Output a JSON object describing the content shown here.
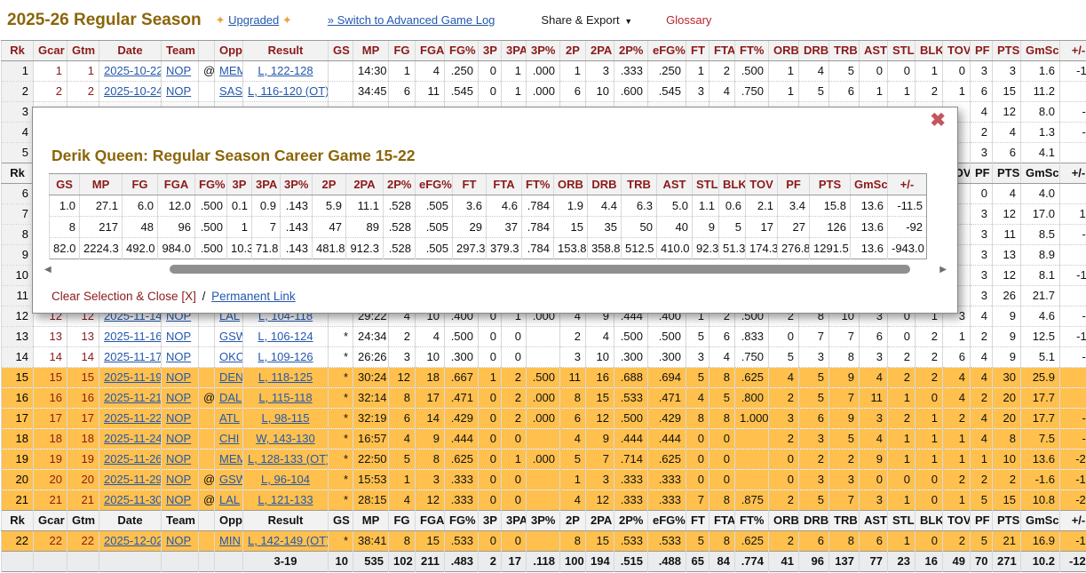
{
  "header": {
    "title": "2025-26 Regular Season",
    "upgraded_label": "Upgraded",
    "switch_label": "» Switch to Advanced Game Log",
    "share_label": "Share & Export",
    "glossary_label": "Glossary"
  },
  "icons": {
    "sparkle": "✦",
    "caret": "▼",
    "close": "✖",
    "scroll_left": "◀",
    "scroll_right": "▶"
  },
  "colors": {
    "highlight_orange": "#ffc04d",
    "header_maroon": "#8b1a19",
    "link_blue": "#2458ad",
    "title_brown": "#8b6508",
    "glossary_red": "#b8242a",
    "close_rose": "#c4565e"
  },
  "main_table": {
    "columns": [
      "Rk",
      "Gcar",
      "Gtm",
      "Date",
      "Team",
      "",
      "Opp",
      "Result",
      "GS",
      "MP",
      "FG",
      "FGA",
      "FG%",
      "3P",
      "3PA",
      "3P%",
      "2P",
      "2PA",
      "2P%",
      "eFG%",
      "FT",
      "FTA",
      "FT%",
      "ORB",
      "DRB",
      "TRB",
      "AST",
      "STL",
      "BLK",
      "TOV",
      "PF",
      "PTS",
      "GmSc",
      "+/-"
    ],
    "rows": [
      {
        "type": "header",
        "variant": "top"
      },
      {
        "type": "data",
        "hl": false,
        "cells": [
          "1",
          "1",
          "1",
          "2025-10-22",
          "NOP",
          "@",
          "MEM",
          "L, 122-128",
          "",
          "14:30",
          "1",
          "4",
          ".250",
          "0",
          "1",
          ".000",
          "1",
          "3",
          ".333",
          ".250",
          "1",
          "2",
          ".500",
          "1",
          "4",
          "5",
          "0",
          "0",
          "1",
          "0",
          "3",
          "3",
          "1.6",
          "-11"
        ]
      },
      {
        "type": "data",
        "hl": false,
        "cells": [
          "2",
          "2",
          "2",
          "2025-10-24",
          "NOP",
          "",
          "SAS",
          "L, 116-120 (OT)",
          "",
          "34:45",
          "6",
          "11",
          ".545",
          "0",
          "1",
          ".000",
          "6",
          "10",
          ".600",
          ".545",
          "3",
          "4",
          ".750",
          "1",
          "5",
          "6",
          "1",
          "1",
          "2",
          "1",
          "6",
          "15",
          "11.2",
          "5"
        ]
      },
      {
        "type": "data",
        "hl": false,
        "cells": [
          "3",
          "",
          "",
          "",
          "",
          "",
          "",
          "",
          "",
          "",
          "",
          "",
          "",
          "",
          "",
          "",
          "",
          "",
          "",
          "",
          "",
          "",
          "",
          "",
          "",
          "",
          "",
          "",
          "",
          "",
          "4",
          "12",
          "8.0",
          "-7"
        ]
      },
      {
        "type": "data",
        "hl": false,
        "cells": [
          "4",
          "",
          "",
          "",
          "",
          "",
          "",
          "",
          "",
          "",
          "",
          "",
          "",
          "",
          "",
          "",
          "",
          "",
          "",
          "",
          "",
          "",
          "",
          "",
          "",
          "",
          "",
          "",
          "",
          "",
          "2",
          "4",
          "1.3",
          "-5"
        ]
      },
      {
        "type": "data",
        "hl": false,
        "cells": [
          "5",
          "",
          "",
          "",
          "",
          "",
          "",
          "",
          "",
          "",
          "",
          "",
          "",
          "",
          "",
          "",
          "",
          "",
          "",
          "",
          "",
          "",
          "",
          "",
          "",
          "",
          "",
          "",
          "",
          "",
          "3",
          "6",
          "4.1",
          "2"
        ]
      },
      {
        "type": "header",
        "variant": "mid"
      },
      {
        "type": "data",
        "hl": false,
        "cells": [
          "6",
          "",
          "",
          "",
          "",
          "",
          "",
          "",
          "",
          "",
          "",
          "",
          "",
          "",
          "",
          "",
          "",
          "",
          "",
          "",
          "",
          "",
          "",
          "",
          "",
          "",
          "",
          "",
          "",
          "",
          "0",
          "4",
          "4.0",
          "1"
        ]
      },
      {
        "type": "data",
        "hl": false,
        "cells": [
          "7",
          "",
          "",
          "",
          "",
          "",
          "",
          "",
          "",
          "",
          "",
          "",
          "",
          "",
          "",
          "",
          "",
          "",
          "",
          "",
          "",
          "",
          "",
          "",
          "",
          "",
          "",
          "",
          "",
          "",
          "3",
          "12",
          "17.0",
          "13"
        ]
      },
      {
        "type": "data",
        "hl": false,
        "cells": [
          "8",
          "",
          "",
          "",
          "",
          "",
          "",
          "",
          "",
          "",
          "",
          "",
          "",
          "",
          "",
          "",
          "",
          "",
          "",
          "",
          "",
          "",
          "",
          "",
          "",
          "",
          "",
          "",
          "",
          "",
          "3",
          "11",
          "8.5",
          "-3"
        ]
      },
      {
        "type": "data",
        "hl": false,
        "cells": [
          "9",
          "",
          "",
          "",
          "",
          "",
          "",
          "",
          "",
          "",
          "",
          "",
          "",
          "",
          "",
          "",
          "",
          "",
          "",
          "",
          "",
          "",
          "",
          "",
          "",
          "",
          "",
          "",
          "",
          "",
          "3",
          "13",
          "8.9",
          "0"
        ]
      },
      {
        "type": "data",
        "hl": false,
        "cells": [
          "10",
          "",
          "",
          "",
          "",
          "",
          "",
          "",
          "",
          "",
          "",
          "",
          "",
          "",
          "",
          "",
          "",
          "",
          "",
          "",
          "",
          "",
          "",
          "",
          "",
          "",
          "",
          "",
          "",
          "",
          "3",
          "12",
          "8.1",
          "-11"
        ]
      },
      {
        "type": "data",
        "hl": false,
        "cells": [
          "11",
          "",
          "",
          "",
          "",
          "",
          "",
          "",
          "",
          "",
          "",
          "",
          "",
          "",
          "",
          "",
          "",
          "",
          "",
          "",
          "",
          "",
          "",
          "",
          "",
          "",
          "",
          "",
          "",
          "",
          "3",
          "26",
          "21.7",
          "0"
        ]
      },
      {
        "type": "data",
        "hl": false,
        "cells": [
          "12",
          "12",
          "12",
          "2025-11-14",
          "NOP",
          "",
          "LAL",
          "L, 104-118",
          "",
          "29:22",
          "4",
          "10",
          ".400",
          "0",
          "1",
          ".000",
          "4",
          "9",
          ".444",
          ".400",
          "1",
          "2",
          ".500",
          "2",
          "8",
          "10",
          "3",
          "0",
          "1",
          "3",
          "4",
          "9",
          "4.6",
          "-2"
        ]
      },
      {
        "type": "data",
        "hl": false,
        "cells": [
          "13",
          "13",
          "13",
          "2025-11-16",
          "NOP",
          "",
          "GSW",
          "L, 106-124",
          "*",
          "24:34",
          "2",
          "4",
          ".500",
          "0",
          "0",
          "",
          "2",
          "4",
          ".500",
          ".500",
          "5",
          "6",
          ".833",
          "0",
          "7",
          "7",
          "6",
          "0",
          "2",
          "1",
          "2",
          "9",
          "12.5",
          "-11"
        ]
      },
      {
        "type": "data",
        "hl": false,
        "cells": [
          "14",
          "14",
          "14",
          "2025-11-17",
          "NOP",
          "",
          "OKC",
          "L, 109-126",
          "*",
          "26:26",
          "3",
          "10",
          ".300",
          "0",
          "0",
          "",
          "3",
          "10",
          ".300",
          ".300",
          "3",
          "4",
          ".750",
          "5",
          "3",
          "8",
          "3",
          "2",
          "2",
          "6",
          "4",
          "9",
          "5.1",
          "-7"
        ]
      },
      {
        "type": "data",
        "hl": true,
        "cells": [
          "15",
          "15",
          "15",
          "2025-11-19",
          "NOP",
          "",
          "DEN",
          "L, 118-125",
          "*",
          "30:24",
          "12",
          "18",
          ".667",
          "1",
          "2",
          ".500",
          "11",
          "16",
          ".688",
          ".694",
          "5",
          "8",
          ".625",
          "4",
          "5",
          "9",
          "4",
          "2",
          "2",
          "4",
          "4",
          "30",
          "25.9",
          "0"
        ]
      },
      {
        "type": "data",
        "hl": true,
        "cells": [
          "16",
          "16",
          "16",
          "2025-11-21",
          "NOP",
          "@",
          "DAL",
          "L, 115-118",
          "*",
          "32:14",
          "8",
          "17",
          ".471",
          "0",
          "2",
          ".000",
          "8",
          "15",
          ".533",
          ".471",
          "4",
          "5",
          ".800",
          "2",
          "5",
          "7",
          "11",
          "1",
          "0",
          "4",
          "2",
          "20",
          "17.7",
          "1"
        ]
      },
      {
        "type": "data",
        "hl": true,
        "cells": [
          "17",
          "17",
          "17",
          "2025-11-22",
          "NOP",
          "",
          "ATL",
          "L, 98-115",
          "*",
          "32:19",
          "6",
          "14",
          ".429",
          "0",
          "2",
          ".000",
          "6",
          "12",
          ".500",
          ".429",
          "8",
          "8",
          "1.000",
          "3",
          "6",
          "9",
          "3",
          "2",
          "1",
          "2",
          "4",
          "20",
          "17.7",
          "-8"
        ]
      },
      {
        "type": "data",
        "hl": true,
        "cells": [
          "18",
          "18",
          "18",
          "2025-11-24",
          "NOP",
          "",
          "CHI",
          "W, 143-130",
          "*",
          "16:57",
          "4",
          "9",
          ".444",
          "0",
          "0",
          "",
          "4",
          "9",
          ".444",
          ".444",
          "0",
          "0",
          "",
          "2",
          "3",
          "5",
          "4",
          "1",
          "1",
          "1",
          "4",
          "8",
          "7.5",
          "-5"
        ]
      },
      {
        "type": "data",
        "hl": true,
        "cells": [
          "19",
          "19",
          "19",
          "2025-11-26",
          "NOP",
          "",
          "MEM",
          "L, 128-133 (OT)",
          "*",
          "22:50",
          "5",
          "8",
          ".625",
          "0",
          "1",
          ".000",
          "5",
          "7",
          ".714",
          ".625",
          "0",
          "0",
          "",
          "0",
          "2",
          "2",
          "9",
          "1",
          "1",
          "1",
          "1",
          "10",
          "13.6",
          "-24"
        ]
      },
      {
        "type": "data",
        "hl": true,
        "cells": [
          "20",
          "20",
          "20",
          "2025-11-29",
          "NOP",
          "@",
          "GSW",
          "L, 96-104",
          "*",
          "15:53",
          "1",
          "3",
          ".333",
          "0",
          "0",
          "",
          "1",
          "3",
          ".333",
          ".333",
          "0",
          "0",
          "",
          "0",
          "3",
          "3",
          "0",
          "0",
          "0",
          "2",
          "2",
          "2",
          "-1.6",
          "-17"
        ]
      },
      {
        "type": "data",
        "hl": true,
        "cells": [
          "21",
          "21",
          "21",
          "2025-11-30",
          "NOP",
          "@",
          "LAL",
          "L, 121-133",
          "*",
          "28:15",
          "4",
          "12",
          ".333",
          "0",
          "0",
          "",
          "4",
          "12",
          ".333",
          ".333",
          "7",
          "8",
          ".875",
          "2",
          "5",
          "7",
          "3",
          "1",
          "0",
          "1",
          "5",
          "15",
          "10.8",
          "-22"
        ]
      },
      {
        "type": "header",
        "variant": "mid"
      },
      {
        "type": "data",
        "hl": true,
        "cells": [
          "22",
          "22",
          "22",
          "2025-12-02",
          "NOP",
          "",
          "MIN",
          "L, 142-149 (OT)",
          "*",
          "38:41",
          "8",
          "15",
          ".533",
          "0",
          "0",
          "",
          "8",
          "15",
          ".533",
          ".533",
          "5",
          "8",
          ".625",
          "2",
          "6",
          "8",
          "6",
          "1",
          "0",
          "2",
          "5",
          "21",
          "16.9",
          "-17"
        ]
      },
      {
        "type": "totals",
        "cells": [
          "",
          "",
          "",
          "",
          "",
          "",
          "",
          "3-19",
          "10",
          "535",
          "102",
          "211",
          ".483",
          "2",
          "17",
          ".118",
          "100",
          "194",
          ".515",
          ".488",
          "65",
          "84",
          ".774",
          "41",
          "96",
          "137",
          "77",
          "23",
          "16",
          "49",
          "70",
          "271",
          "10.2",
          "-128"
        ]
      }
    ]
  },
  "modal": {
    "title": "Derik Queen: Regular Season Career Game 15-22",
    "clear_close_label": "Clear Selection & Close [X]",
    "separator": "/",
    "permanent_label": "Permanent Link",
    "columns": [
      "GS",
      "MP",
      "FG",
      "FGA",
      "FG%",
      "3P",
      "3PA",
      "3P%",
      "2P",
      "2PA",
      "2P%",
      "eFG%",
      "FT",
      "FTA",
      "FT%",
      "ORB",
      "DRB",
      "TRB",
      "AST",
      "STL",
      "BLK",
      "TOV",
      "PF",
      "PTS",
      "GmSc",
      "+/-"
    ],
    "rows": [
      [
        "1.0",
        "27.1",
        "6.0",
        "12.0",
        ".500",
        "0.1",
        "0.9",
        ".143",
        "5.9",
        "11.1",
        ".528",
        ".505",
        "3.6",
        "4.6",
        ".784",
        "1.9",
        "4.4",
        "6.3",
        "5.0",
        "1.1",
        "0.6",
        "2.1",
        "3.4",
        "15.8",
        "13.6",
        "-11.5"
      ],
      [
        "8",
        "217",
        "48",
        "96",
        ".500",
        "1",
        "7",
        ".143",
        "47",
        "89",
        ".528",
        ".505",
        "29",
        "37",
        ".784",
        "15",
        "35",
        "50",
        "40",
        "9",
        "5",
        "17",
        "27",
        "126",
        "13.6",
        "-92"
      ],
      [
        "82.0",
        "2224.3",
        "492.0",
        "984.0",
        ".500",
        "10.3",
        "71.8",
        ".143",
        "481.8",
        "912.3",
        ".528",
        ".505",
        "297.3",
        "379.3",
        ".784",
        "153.8",
        "358.8",
        "512.5",
        "410.0",
        "92.3",
        "51.3",
        "174.3",
        "276.8",
        "1291.5",
        "13.6",
        "-943.0"
      ]
    ]
  }
}
